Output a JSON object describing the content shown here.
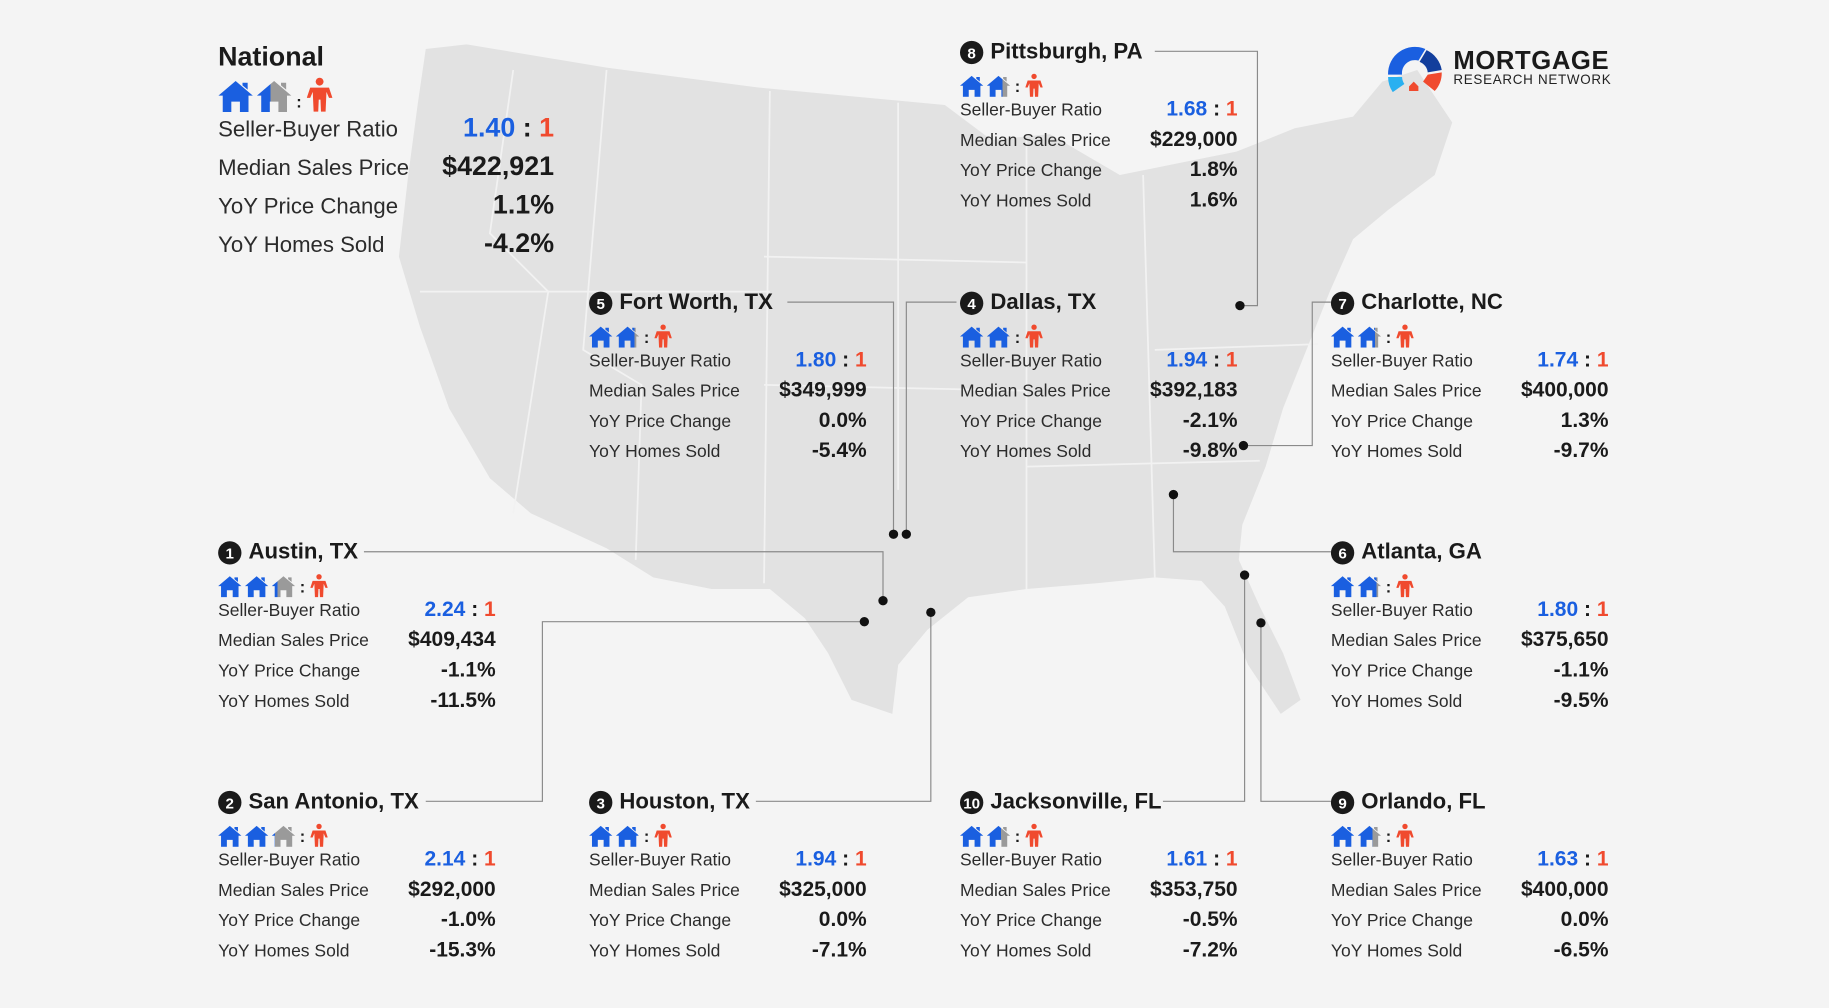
{
  "brand": {
    "name": "MORTGAGE",
    "subtitle": "RESEARCH NETWORK"
  },
  "colors": {
    "seller_blue": "#1a5fe0",
    "buyer_red": "#f04a2e",
    "partial_gray": "#9a9a9a",
    "map_fill": "#e2e2e2",
    "background": "#f4f4f4"
  },
  "labels": {
    "ratio": "Seller-Buyer Ratio",
    "median": "Median Sales Price",
    "yoy_price": "YoY Price Change",
    "yoy_homes": "YoY Homes Sold",
    "colon": ":",
    "buyer_unit": "1"
  },
  "icons": {
    "seller": "house-icon",
    "buyer": "person-icon"
  },
  "national": {
    "name": "National",
    "ratio": "1.40",
    "median": "$422,921",
    "yoy_price": "1.1%",
    "yoy_homes": "-4.2%"
  },
  "cities": [
    {
      "rank": "1",
      "name": "Austin, TX",
      "ratio": "2.24",
      "median": "$409,434",
      "yoy_price": "-1.1%",
      "yoy_homes": "-11.5%"
    },
    {
      "rank": "2",
      "name": "San Antonio, TX",
      "ratio": "2.14",
      "median": "$292,000",
      "yoy_price": "-1.0%",
      "yoy_homes": "-15.3%"
    },
    {
      "rank": "3",
      "name": "Houston, TX",
      "ratio": "1.94",
      "median": "$325,000",
      "yoy_price": "0.0%",
      "yoy_homes": "-7.1%"
    },
    {
      "rank": "4",
      "name": "Dallas, TX",
      "ratio": "1.94",
      "median": "$392,183",
      "yoy_price": "-2.1%",
      "yoy_homes": "-9.8%"
    },
    {
      "rank": "5",
      "name": "Fort Worth, TX",
      "ratio": "1.80",
      "median": "$349,999",
      "yoy_price": "0.0%",
      "yoy_homes": "-5.4%"
    },
    {
      "rank": "6",
      "name": "Atlanta, GA",
      "ratio": "1.80",
      "median": "$375,650",
      "yoy_price": "-1.1%",
      "yoy_homes": "-9.5%"
    },
    {
      "rank": "7",
      "name": "Charlotte, NC",
      "ratio": "1.74",
      "median": "$400,000",
      "yoy_price": "1.3%",
      "yoy_homes": "-9.7%"
    },
    {
      "rank": "8",
      "name": "Pittsburgh, PA",
      "ratio": "1.68",
      "median": "$229,000",
      "yoy_price": "1.8%",
      "yoy_homes": "1.6%"
    },
    {
      "rank": "9",
      "name": "Orlando, FL",
      "ratio": "1.63",
      "median": "$400,000",
      "yoy_price": "0.0%",
      "yoy_homes": "-6.5%"
    },
    {
      "rank": "10",
      "name": "Jacksonville, FL",
      "ratio": "1.61",
      "median": "$353,750",
      "yoy_price": "-0.5%",
      "yoy_homes": "-7.2%"
    }
  ]
}
